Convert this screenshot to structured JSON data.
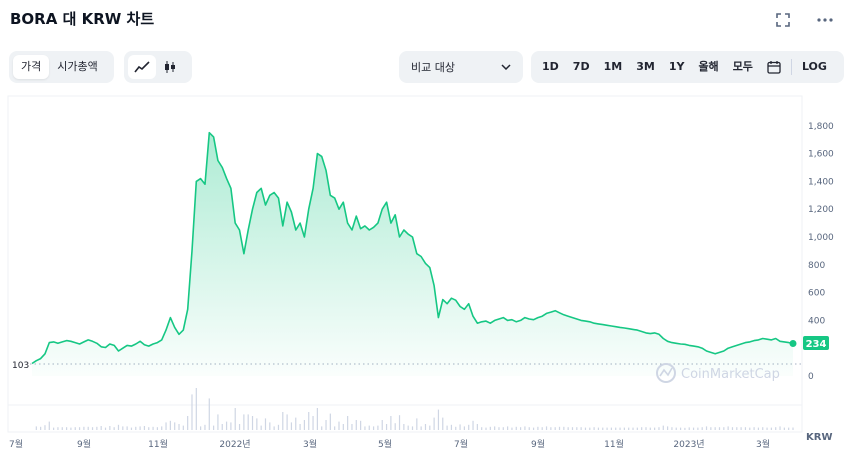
{
  "header": {
    "title": "BORA 대 KRW 차트",
    "expand_icon": "expand-icon",
    "more_icon": "more-horizontal-icon"
  },
  "toolbar": {
    "metric_tabs": [
      "가격",
      "시가총액"
    ],
    "active_metric": "가격",
    "chart_type_icons": [
      "line-chart-icon",
      "candlestick-icon"
    ],
    "compare_label": "비교 대상",
    "ranges": [
      "1D",
      "7D",
      "1M",
      "3M",
      "1Y",
      "올해",
      "모두"
    ],
    "calendar_icon": "calendar-icon",
    "log_label": "LOG"
  },
  "colors": {
    "line": "#16c784",
    "area_top": "#16c784",
    "volume": "#cfd6e4",
    "grid": "#eff2f5",
    "axis_text": "#58667e"
  },
  "watermark": "CoinMarketCap",
  "chart_data": {
    "type": "area",
    "y_ticks": [
      0,
      400,
      600,
      800,
      "1,000",
      "1,200",
      "1,400",
      "1,600",
      "1,800"
    ],
    "ylim": [
      0,
      1900
    ],
    "x_labels": [
      "7월",
      "9월",
      "11월",
      "2022년",
      "3월",
      "5월",
      "7월",
      "9월",
      "11월",
      "2023년",
      "3월"
    ],
    "baseline_value": 103,
    "current_value": 234,
    "currency_label": "KRW",
    "series": [
      {
        "values": [
          90,
          110,
          125,
          160,
          240,
          245,
          235,
          245,
          255,
          250,
          240,
          230,
          245,
          260,
          250,
          235,
          210,
          205,
          230,
          220,
          180,
          200,
          220,
          215,
          230,
          250,
          225,
          215,
          230,
          240,
          260,
          330,
          420,
          350,
          300,
          330,
          480,
          900,
          1400,
          1420,
          1380,
          1750,
          1720,
          1550,
          1500,
          1420,
          1350,
          1100,
          1050,
          880,
          1050,
          1200,
          1320,
          1350,
          1230,
          1300,
          1320,
          1280,
          1080,
          1250,
          1180,
          1050,
          1100,
          1000,
          1200,
          1350,
          1600,
          1580,
          1480,
          1300,
          1280,
          1200,
          1250,
          1100,
          1050,
          1150,
          1060,
          1080,
          1050,
          1070,
          1100,
          1200,
          1250,
          1100,
          1160,
          1000,
          1050,
          1020,
          1000,
          880,
          860,
          810,
          780,
          650,
          420,
          550,
          520,
          560,
          545,
          500,
          480,
          520,
          430,
          380,
          390,
          395,
          380,
          400,
          410,
          420,
          400,
          405,
          390,
          400,
          420,
          410,
          405,
          420,
          430,
          450,
          460,
          470,
          455,
          440,
          430,
          420,
          410,
          400,
          395,
          390,
          380,
          375,
          370,
          365,
          360,
          355,
          350,
          345,
          340,
          335,
          330,
          320,
          310,
          305,
          310,
          300,
          270,
          250,
          240,
          235,
          230,
          228,
          220,
          215,
          210,
          200,
          180,
          170,
          160,
          170,
          180,
          200,
          210,
          220,
          230,
          240,
          245,
          255,
          260,
          270,
          265,
          260,
          270,
          250,
          245,
          240,
          234
        ]
      }
    ]
  }
}
